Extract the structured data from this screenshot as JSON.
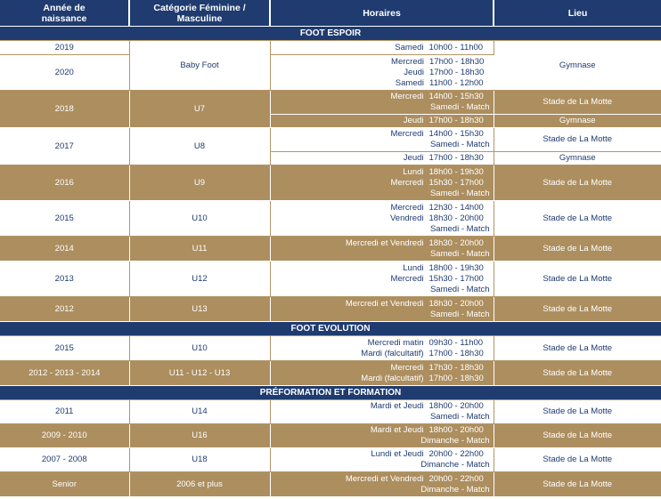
{
  "header": {
    "col_year": "Année de naissance",
    "col_category": "Catégorie Féminine / Masculine",
    "col_schedule": "Horaires",
    "col_place": "Lieu"
  },
  "sections": {
    "s1": "FOOT ESPOIR",
    "s2": "FOOT EVOLUTION",
    "s3": "PRÉFORMATION ET FORMATION"
  },
  "rows": {
    "r2019": {
      "year": "2019",
      "d1": "Samedi",
      "t1": "10h00 - 11h00"
    },
    "r2020": {
      "year": "2020",
      "d1": "Mercredi",
      "t1": "17h00 - 18h30",
      "d2": "Jeudi",
      "t2": "17h00 - 18h30",
      "d3": "Samedi",
      "t3": "11h00 - 12h00"
    },
    "babyfoot": {
      "cat": "Baby Foot",
      "place": "Gymnase"
    },
    "r2018": {
      "year": "2018",
      "cat": "U7",
      "d1": "Mercredi",
      "t1": "14h00 - 15h30",
      "m1": "Samedi - Match",
      "place1": "Stade de La Motte",
      "d2": "Jeudi",
      "t2": "17h00 - 18h30",
      "place2": "Gymnase"
    },
    "r2017": {
      "year": "2017",
      "cat": "U8",
      "d1": "Mercredi",
      "t1": "14h00 - 15h30",
      "m1": "Samedi - Match",
      "place1": "Stade de La Motte",
      "d2": "Jeudi",
      "t2": "17h00 - 18h30",
      "place2": "Gymnase"
    },
    "r2016": {
      "year": "2016",
      "cat": "U9",
      "d1": "Lundi",
      "t1": "18h00 - 19h30",
      "d2": "Mercredi",
      "t2": "15h30 - 17h00",
      "m": "Samedi - Match",
      "place": "Stade de La Motte"
    },
    "r2015": {
      "year": "2015",
      "cat": "U10",
      "d1": "Mercredi",
      "t1": "12h30 - 14h00",
      "d2": "Vendredi",
      "t2": "18h30 - 20h00",
      "m": "Samedi - Match",
      "place": "Stade de La Motte"
    },
    "r2014": {
      "year": "2014",
      "cat": "U11",
      "d1": "Mercredi et Vendredi",
      "t1": "18h30 - 20h00",
      "m": "Samedi - Match",
      "place": "Stade de La Motte"
    },
    "r2013": {
      "year": "2013",
      "cat": "U12",
      "d1": "Lundi",
      "t1": "18h00 - 19h30",
      "d2": "Mercredi",
      "t2": "15h30 - 17h00",
      "m": "Samedi - Match",
      "place": "Stade de La Motte"
    },
    "r2012": {
      "year": "2012",
      "cat": "U13",
      "d1": "Mercredi et Vendredi",
      "t1": "18h30 - 20h00",
      "m": "Samedi - Match",
      "place": "Stade de La Motte"
    },
    "e2015": {
      "year": "2015",
      "cat": "U10",
      "d1": "Mercredi matin",
      "t1": "09h30 - 11h00",
      "d2": "Mardi (falcultatif)",
      "t2": "17h00 - 18h30",
      "place": "Stade de La Motte"
    },
    "e2012": {
      "year": "2012 - 2013 - 2014",
      "cat": "U11 - U12 - U13",
      "d1": "Mercredi",
      "t1": "17h30 - 18h30",
      "d2": "Mardi (falcultatif)",
      "t2": "17h00 - 18h30",
      "place": "Stade de La Motte"
    },
    "f2011": {
      "year": "2011",
      "cat": "U14",
      "d1": "Mardi et Jeudi",
      "t1": "18h00 - 20h00",
      "m": "Samedi - Match",
      "place": "Stade de La Motte"
    },
    "f2009": {
      "year": "2009 - 2010",
      "cat": "U16",
      "d1": "Mardi et Jeudi",
      "t1": "18h00 - 20h00",
      "m": "Dimanche - Match",
      "place": "Stade de La Motte"
    },
    "f2007": {
      "year": "2007 - 2008",
      "cat": "U18",
      "d1": "Lundi et Jeudi",
      "t1": "20h00 - 22h00",
      "m": "Dimanche - Match",
      "place": "Stade de La Motte"
    },
    "senior": {
      "year": "Senior",
      "cat": "2006 et plus",
      "d1": "Mercredi et Vendredi",
      "t1": "20h00 - 22h00",
      "m": "Dimanche - Match",
      "place": "Stade de La Motte"
    }
  }
}
